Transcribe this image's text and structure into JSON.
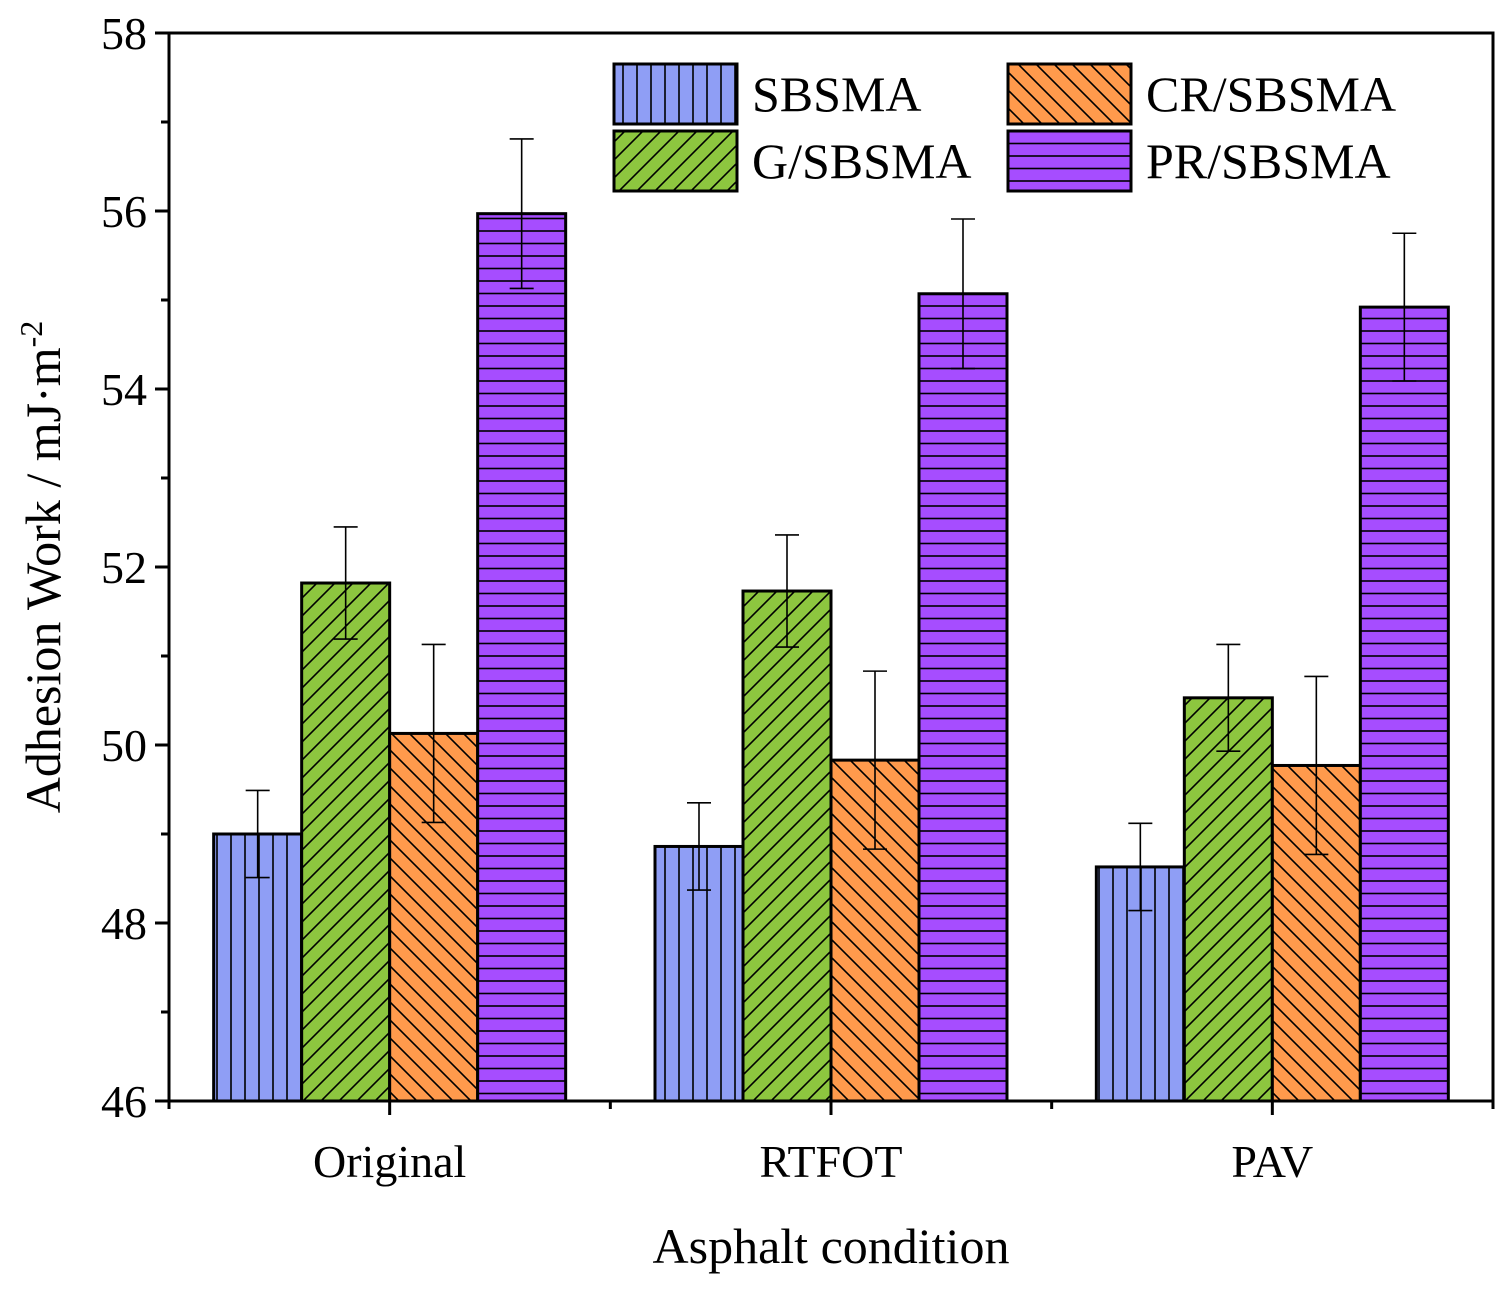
{
  "chart_data": {
    "type": "bar",
    "title": "",
    "xlabel": "Asphalt condition",
    "ylabel_main": "Adhesion Work / mJ·m",
    "ylabel_sup": "-2",
    "ylim": [
      46,
      58
    ],
    "yticks": [
      "46",
      "48",
      "50",
      "52",
      "54",
      "56",
      "58"
    ],
    "grid": false,
    "legend_position": "top-right",
    "categories": [
      "Original",
      "RTFOT",
      "PAV"
    ],
    "series": [
      {
        "name": "SBSMA",
        "color": "#8f9ef5",
        "pattern": "vertical",
        "values": [
          49.0,
          48.86,
          48.63
        ],
        "errors": [
          0.49,
          0.49,
          0.49
        ]
      },
      {
        "name": "G/SBSMA",
        "color": "#8dc63f",
        "pattern": "diag-up",
        "values": [
          51.82,
          51.73,
          50.53
        ],
        "errors": [
          0.63,
          0.63,
          0.6
        ]
      },
      {
        "name": "CR/SBSMA",
        "color": "#ff9a4c",
        "pattern": "diag-down",
        "values": [
          50.13,
          49.83,
          49.77
        ],
        "errors": [
          1.0,
          1.0,
          1.0
        ]
      },
      {
        "name": "PR/SBSMA",
        "color": "#a64dff",
        "pattern": "horizontal",
        "values": [
          55.97,
          55.07,
          54.92
        ],
        "errors": [
          0.84,
          0.84,
          0.83
        ]
      }
    ]
  }
}
